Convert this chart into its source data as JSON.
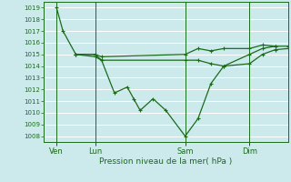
{
  "title": "Pression niveau de la mer( hPa )",
  "background_color": "#cceaec",
  "grid_color": "#ffffff",
  "line_color": "#1a6b1a",
  "ylim": [
    1007.5,
    1019.5
  ],
  "yticks": [
    1008,
    1009,
    1010,
    1011,
    1012,
    1013,
    1014,
    1015,
    1016,
    1017,
    1018,
    1019
  ],
  "day_labels": [
    "Ven",
    "Lun",
    "Sam",
    "Dim"
  ],
  "day_positions": [
    1,
    4,
    11,
    16
  ],
  "xlim": [
    0,
    19
  ],
  "series1_x": [
    1,
    1.5,
    2.5,
    4,
    4.5,
    5.5,
    6.5,
    7,
    7.5,
    8.5,
    9.5,
    11,
    12,
    13,
    14,
    16,
    17,
    18
  ],
  "series1_y": [
    1019,
    1017,
    1015,
    1015,
    1014.5,
    1011.7,
    1012.2,
    1011.2,
    1010.2,
    1011.2,
    1010.2,
    1008,
    1009.5,
    1012.5,
    1014,
    1015,
    1015.5,
    1015.7
  ],
  "series2_x": [
    2.5,
    4,
    4.5,
    11,
    12,
    13,
    14,
    16,
    17,
    18,
    19
  ],
  "series2_y": [
    1015,
    1015,
    1014.8,
    1015,
    1015.5,
    1015.3,
    1015.5,
    1015.5,
    1015.8,
    1015.7,
    1015.7
  ],
  "series3_x": [
    2.5,
    4,
    4.5,
    11,
    12,
    13,
    14,
    16,
    17,
    18,
    19
  ],
  "series3_y": [
    1015,
    1014.8,
    1014.5,
    1014.5,
    1014.5,
    1014.2,
    1014,
    1014.2,
    1015,
    1015.4,
    1015.5
  ]
}
